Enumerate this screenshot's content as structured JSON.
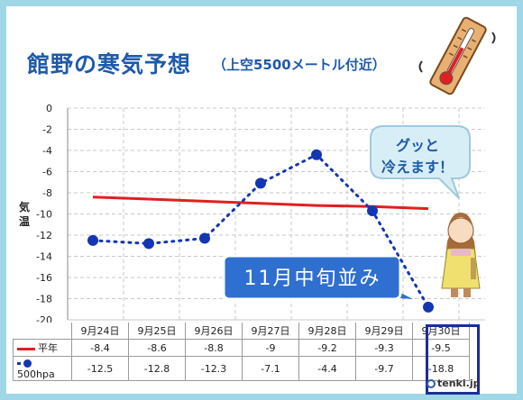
{
  "title": "館野の寒気予想",
  "subtitle": "（上空5500メートル付近）",
  "ylabel": "気温",
  "bubble": "グッと\n冷えます！",
  "callout": "11月中旬並み",
  "brand": "tenki.jp",
  "colors": {
    "frame": "#9fd7e6",
    "normal": "#e02020",
    "forecast": "#1436b4",
    "title": "#1e5aa8",
    "callout": "#2f6fd0"
  },
  "chart_data": {
    "type": "line",
    "categories": [
      "9月24日",
      "9月25日",
      "9月26日",
      "9月27日",
      "9月28日",
      "9月29日",
      "9月30日"
    ],
    "series": [
      {
        "name": "平年",
        "values": [
          -8.4,
          -8.6,
          -8.8,
          -9,
          -9.2,
          -9.3,
          -9.5
        ],
        "display": [
          "-8.4",
          "-8.6",
          "-8.8",
          "-9",
          "-9.2",
          "-9.3",
          "-9.5"
        ]
      },
      {
        "name": "500hpa",
        "values": [
          -12.5,
          -12.8,
          -12.3,
          -7.1,
          -4.4,
          -9.7,
          -18.8
        ],
        "display": [
          "-12.5",
          "-12.8",
          "-12.3",
          "-7.1",
          "-4.4",
          "-9.7",
          "-18.8"
        ]
      }
    ],
    "yticks": [
      "0",
      "-2",
      "-4",
      "-6",
      "-8",
      "-10",
      "-12",
      "-14",
      "-16",
      "-18",
      "-20"
    ],
    "ylim": [
      -20,
      0
    ],
    "grid": true
  }
}
